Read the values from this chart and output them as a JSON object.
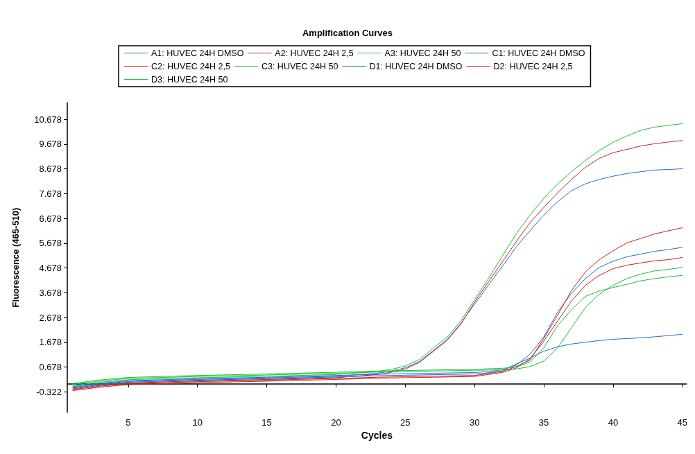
{
  "chart_data": {
    "type": "line",
    "title": "Amplification Curves",
    "xlabel": "Cycles",
    "ylabel": "Fluorescence (465-510)",
    "x": [
      1,
      3,
      5,
      10,
      15,
      20,
      23,
      24,
      25,
      26,
      27,
      28,
      29,
      30,
      31,
      32,
      33,
      34,
      35,
      36,
      37,
      38,
      39,
      40,
      41,
      42,
      43,
      44,
      45
    ],
    "xlim": [
      0.6,
      45.3
    ],
    "xticks": [
      5,
      10,
      15,
      20,
      25,
      30,
      35,
      40,
      45
    ],
    "ylim": [
      -1.15,
      11.35
    ],
    "yticks": [
      -0.322,
      0.678,
      1.678,
      2.678,
      3.678,
      4.678,
      5.678,
      6.678,
      7.678,
      8.678,
      9.678,
      10.678
    ],
    "grid": false,
    "legend": "top",
    "marker": "none",
    "line_style": "solid",
    "series": [
      {
        "name": "A1: HUVEC 24H DMSO",
        "color": "#1c6dd0",
        "values": [
          -0.14,
          0,
          0.1,
          0.18,
          0.24,
          0.31,
          0.43,
          0.52,
          0.65,
          0.9,
          1.33,
          1.78,
          2.44,
          3.22,
          3.98,
          4.74,
          5.52,
          6.18,
          6.81,
          7.35,
          7.8,
          8.07,
          8.25,
          8.38,
          8.49,
          8.56,
          8.63,
          8.65,
          8.68
        ]
      },
      {
        "name": "A2: HUVEC 24H 2,5",
        "color": "#c8201e",
        "values": [
          -0.2,
          -0.06,
          0.04,
          0.12,
          0.18,
          0.25,
          0.38,
          0.47,
          0.6,
          0.86,
          1.3,
          1.75,
          2.4,
          3.3,
          4.11,
          4.92,
          5.73,
          6.5,
          7.12,
          7.71,
          8.25,
          8.74,
          9.1,
          9.33,
          9.46,
          9.6,
          9.69,
          9.76,
          9.82
        ]
      },
      {
        "name": "A3: HUVEC 24H 50",
        "color": "#18c030",
        "values": [
          -0.07,
          0.07,
          0.17,
          0.25,
          0.31,
          0.38,
          0.5,
          0.59,
          0.72,
          0.98,
          1.43,
          1.88,
          2.53,
          3.4,
          4.25,
          5.15,
          6.05,
          6.81,
          7.49,
          8.07,
          8.56,
          9.01,
          9.42,
          9.75,
          10,
          10.23,
          10.36,
          10.43,
          10.5
        ]
      },
      {
        "name": "C1: HUVEC 24H DMSO",
        "color": "#1c6dd0",
        "values": [
          -0.11,
          0.03,
          0.13,
          0.21,
          0.27,
          0.34,
          0.39,
          0.4,
          0.41,
          0.42,
          0.43,
          0.44,
          0.45,
          0.46,
          0.5,
          0.57,
          0.75,
          1.19,
          1.9,
          2.9,
          3.66,
          4.25,
          4.7,
          4.95,
          5.13,
          5.24,
          5.35,
          5.42,
          5.51
        ]
      },
      {
        "name": "C2: HUVEC 24H 2,5",
        "color": "#c8201e",
        "values": [
          -0.23,
          -0.09,
          0.01,
          0.09,
          0.15,
          0.22,
          0.27,
          0.28,
          0.29,
          0.3,
          0.31,
          0.32,
          0.33,
          0.34,
          0.42,
          0.5,
          0.7,
          0.96,
          1.84,
          2.78,
          3.77,
          4.52,
          5.01,
          5.37,
          5.69,
          5.87,
          6.05,
          6.18,
          6.3
        ]
      },
      {
        "name": "C3: HUVEC 24H 50",
        "color": "#18c030",
        "values": [
          -0.02,
          0.12,
          0.22,
          0.3,
          0.36,
          0.43,
          0.48,
          0.49,
          0.5,
          0.51,
          0.52,
          0.53,
          0.54,
          0.55,
          0.56,
          0.57,
          0.6,
          0.7,
          0.92,
          1.46,
          2.27,
          3.08,
          3.62,
          3.98,
          4.25,
          4.43,
          4.56,
          4.62,
          4.7
        ]
      },
      {
        "name": "D1: HUVEC 24H DMSO",
        "color": "#1c6dd0",
        "values": [
          -0.17,
          -0.03,
          0.07,
          0.15,
          0.21,
          0.28,
          0.33,
          0.34,
          0.35,
          0.36,
          0.37,
          0.38,
          0.39,
          0.4,
          0.45,
          0.53,
          0.8,
          1.04,
          1.32,
          1.5,
          1.61,
          1.68,
          1.75,
          1.8,
          1.83,
          1.86,
          1.9,
          1.95,
          2.0
        ]
      },
      {
        "name": "D2: HUVEC 24H 2,5",
        "color": "#c8201e",
        "values": [
          -0.27,
          -0.13,
          -0.03,
          0.05,
          0.11,
          0.18,
          0.23,
          0.24,
          0.25,
          0.26,
          0.27,
          0.28,
          0.29,
          0.3,
          0.38,
          0.46,
          0.64,
          1.01,
          1.73,
          2.54,
          3.35,
          3.98,
          4.38,
          4.65,
          4.79,
          4.88,
          4.97,
          5.01,
          5.1
        ]
      },
      {
        "name": "D3: HUVEC 24H 50",
        "color": "#18c030",
        "values": [
          0.02,
          0.16,
          0.26,
          0.34,
          0.4,
          0.47,
          0.52,
          0.53,
          0.54,
          0.55,
          0.56,
          0.57,
          0.58,
          0.59,
          0.61,
          0.63,
          0.68,
          0.88,
          1.46,
          2.36,
          2.99,
          3.53,
          3.75,
          3.89,
          4.02,
          4.16,
          4.25,
          4.32,
          4.38
        ]
      }
    ]
  }
}
